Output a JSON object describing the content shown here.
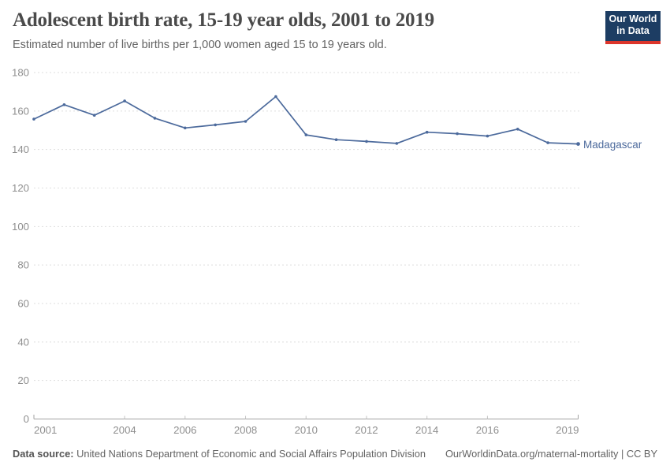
{
  "chart_data": {
    "type": "line",
    "title": "Adolescent birth rate, 15-19 year olds, 2001 to 2019",
    "subtitle": "Estimated number of live births per 1,000 women aged 15 to 19 years old.",
    "x": [
      2001,
      2002,
      2003,
      2004,
      2005,
      2006,
      2007,
      2008,
      2009,
      2010,
      2011,
      2012,
      2013,
      2014,
      2015,
      2016,
      2017,
      2018,
      2019
    ],
    "series": [
      {
        "name": "Madagascar",
        "color": "#4c6a9c",
        "values": [
          155.8,
          163.3,
          157.8,
          165.2,
          156.3,
          151.2,
          152.8,
          154.6,
          167.5,
          147.6,
          145.1,
          144.2,
          143.2,
          149.0,
          148.2,
          147.0,
          150.6,
          143.5,
          142.9
        ]
      }
    ],
    "xlim": [
      2001,
      2019
    ],
    "ylim": [
      0,
      180
    ],
    "x_ticks": [
      2001,
      2004,
      2006,
      2008,
      2010,
      2012,
      2014,
      2016,
      2019
    ],
    "y_ticks": [
      0,
      20,
      40,
      60,
      80,
      100,
      120,
      140,
      160,
      180
    ],
    "grid": true,
    "grid_style": "dashed",
    "legend_position": "end-of-line-label",
    "xlabel": "",
    "ylabel": ""
  },
  "logo": {
    "line1": "Our World",
    "line2": "in Data"
  },
  "footer": {
    "source_label": "Data source:",
    "source_text": "United Nations Department of Economic and Social Affairs Population Division",
    "right_text": "OurWorldinData.org/maternal-mortality | CC BY"
  },
  "colors": {
    "line": "#4c6a9c",
    "grid": "#dedede",
    "axis": "#a3a3a3",
    "tick": "#c4c4c4",
    "tick_label": "#8f8f8f",
    "title": "#4a4a4a",
    "subtitle": "#636363",
    "footer": "#636363",
    "logo_bg": "#1d3d63",
    "logo_stripe": "#dc352b"
  }
}
